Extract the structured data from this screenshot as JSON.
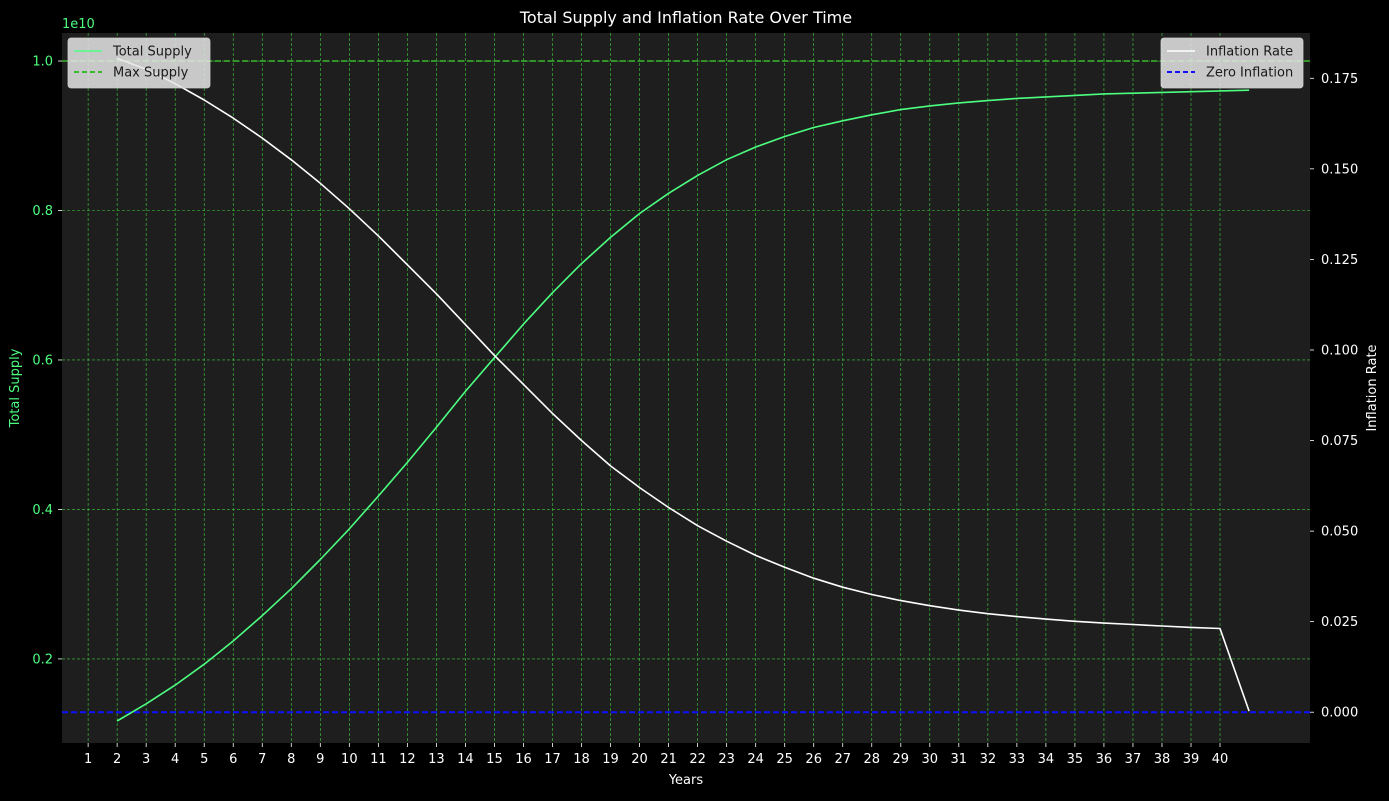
{
  "chart_data": {
    "type": "line",
    "title": "Total Supply and Inflation Rate Over Time",
    "xlabel": "Years",
    "x_ticks": [
      1,
      2,
      3,
      4,
      5,
      6,
      7,
      8,
      9,
      10,
      11,
      12,
      13,
      14,
      15,
      16,
      17,
      18,
      19,
      20,
      21,
      22,
      23,
      24,
      25,
      26,
      27,
      28,
      29,
      30,
      31,
      32,
      33,
      34,
      35,
      36,
      37,
      38,
      39,
      40
    ],
    "xlim": [
      0.1,
      43.1
    ],
    "grid": true,
    "left_axis": {
      "label": "Total Supply",
      "scale_note": "1e10",
      "ticks": [
        0.2,
        0.4,
        0.6,
        0.8,
        1.0
      ],
      "ylim": [
        0.0875,
        1.0375
      ],
      "color": "#4dff80"
    },
    "right_axis": {
      "label": "Inflation Rate",
      "ticks": [
        "0.000",
        "0.025",
        "0.050",
        "0.075",
        "0.100",
        "0.125",
        "0.150",
        "0.175"
      ],
      "tick_values": [
        0,
        0.025,
        0.05,
        0.075,
        0.1,
        0.125,
        0.15,
        0.175
      ],
      "ylim": [
        -0.0085,
        0.1875
      ],
      "color": "#ffffff"
    },
    "series": [
      {
        "name": "Total Supply",
        "axis": "left",
        "color": "#4dff80",
        "style": "solid",
        "x": [
          2,
          3,
          4,
          5,
          6,
          7,
          8,
          9,
          10,
          11,
          12,
          13,
          14,
          15,
          16,
          17,
          18,
          19,
          20,
          21,
          22,
          23,
          24,
          25,
          26,
          27,
          28,
          29,
          30,
          31,
          32,
          33,
          34,
          35,
          36,
          37,
          38,
          39,
          40,
          41
        ],
        "values": [
          0.117,
          0.14,
          0.165,
          0.193,
          0.224,
          0.258,
          0.294,
          0.333,
          0.374,
          0.418,
          0.463,
          0.51,
          0.558,
          0.603,
          0.648,
          0.69,
          0.729,
          0.764,
          0.796,
          0.823,
          0.847,
          0.868,
          0.885,
          0.899,
          0.911,
          0.92,
          0.928,
          0.935,
          0.94,
          0.944,
          0.947,
          0.95,
          0.952,
          0.954,
          0.956,
          0.957,
          0.958,
          0.959,
          0.96,
          0.961
        ]
      },
      {
        "name": "Max Supply",
        "axis": "left",
        "color": "#3cb82e",
        "style": "dashed",
        "y": 1.0
      },
      {
        "name": "Inflation Rate",
        "axis": "right",
        "color": "#ffffff",
        "style": "solid",
        "x": [
          2,
          3,
          4,
          5,
          6,
          7,
          8,
          9,
          10,
          11,
          12,
          13,
          14,
          15,
          16,
          17,
          18,
          19,
          20,
          21,
          22,
          23,
          24,
          25,
          26,
          27,
          28,
          29,
          30,
          31,
          32,
          33,
          34,
          35,
          36,
          37,
          38,
          39,
          40,
          41
        ],
        "values": [
          0.1805,
          0.1775,
          0.1735,
          0.169,
          0.164,
          0.1585,
          0.1525,
          0.146,
          0.139,
          0.1315,
          0.1235,
          0.1155,
          0.107,
          0.0985,
          0.0905,
          0.0825,
          0.075,
          0.068,
          0.062,
          0.0565,
          0.0515,
          0.0472,
          0.0433,
          0.04,
          0.037,
          0.0345,
          0.0325,
          0.0308,
          0.0294,
          0.0282,
          0.0272,
          0.0264,
          0.0257,
          0.0251,
          0.0246,
          0.0242,
          0.0238,
          0.0234,
          0.0231,
          0.0003
        ]
      },
      {
        "name": "Zero Inflation",
        "axis": "right",
        "color": "#1010ff",
        "style": "dashed",
        "y": 0
      }
    ],
    "legends": [
      {
        "position": "top-left",
        "entries": [
          {
            "label": "Total Supply",
            "color": "#4dff80",
            "style": "solid"
          },
          {
            "label": "Max Supply",
            "color": "#3cb82e",
            "style": "dashed"
          }
        ]
      },
      {
        "position": "top-right",
        "entries": [
          {
            "label": "Inflation Rate",
            "color": "#ffffff",
            "style": "solid"
          },
          {
            "label": "Zero Inflation",
            "color": "#1010ff",
            "style": "dashed"
          }
        ]
      }
    ],
    "colors": {
      "background": "#000000",
      "plot_area": "#1e1e1e",
      "grid": "#3dcf3d",
      "text": "#ffffff"
    }
  }
}
